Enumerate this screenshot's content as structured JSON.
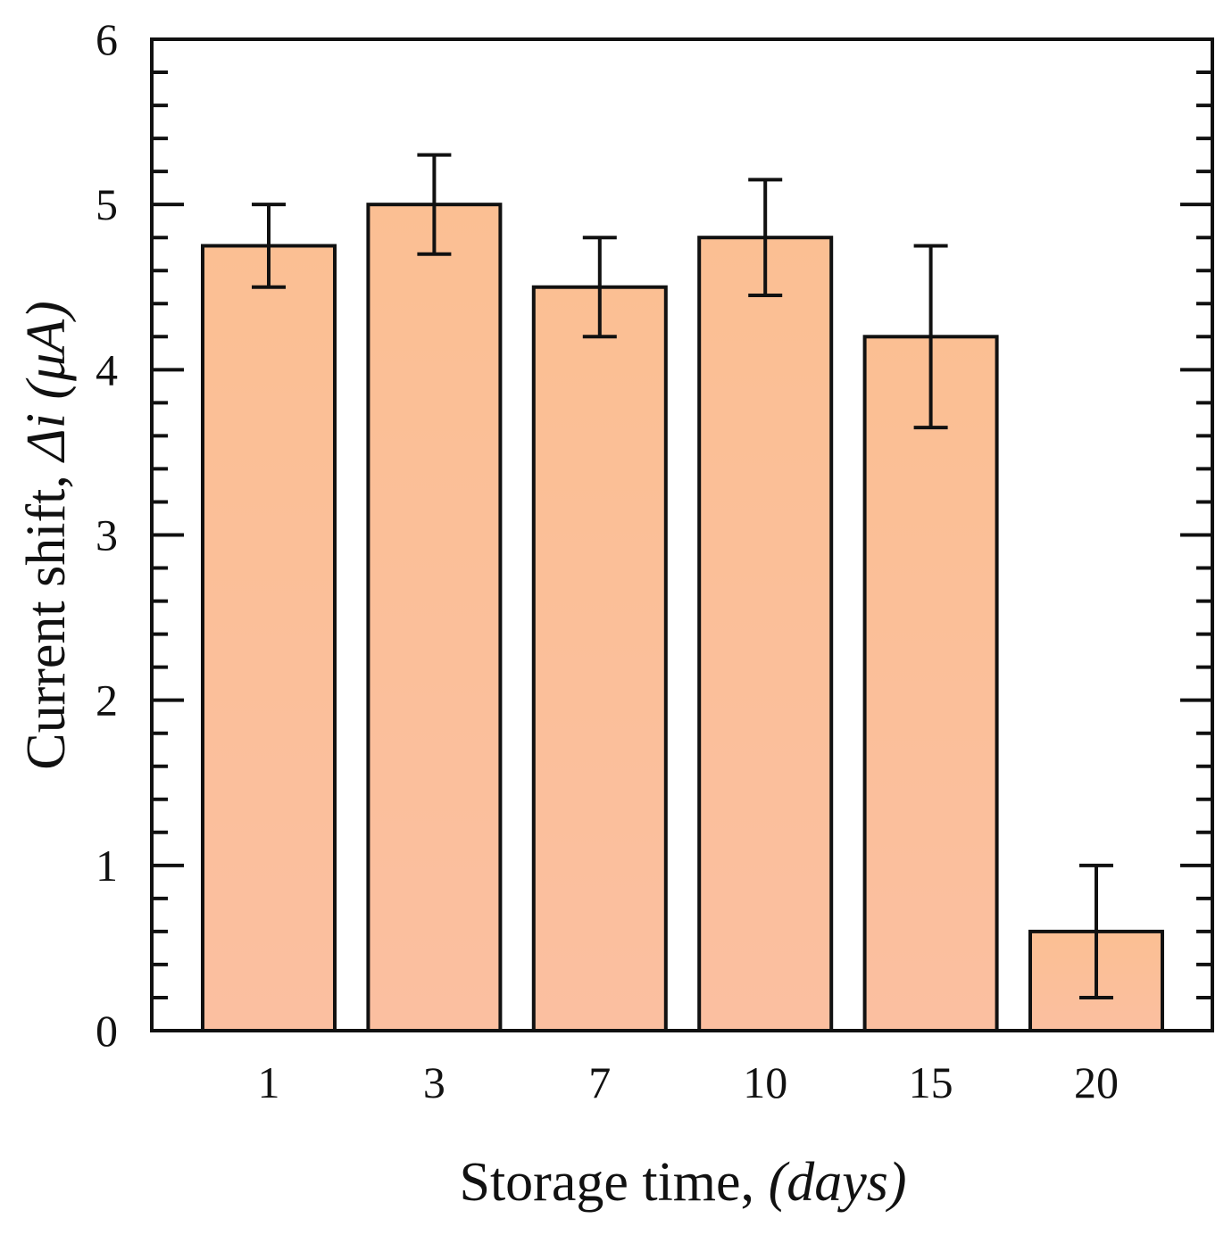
{
  "chart_data": {
    "type": "bar",
    "categories": [
      "1",
      "3",
      "7",
      "10",
      "15",
      "20"
    ],
    "values": [
      4.75,
      5.0,
      4.5,
      4.8,
      4.2,
      0.6
    ],
    "errors": [
      0.25,
      0.3,
      0.3,
      0.35,
      0.55,
      0.4
    ],
    "xlabel": {
      "prefix": "Storage time, ",
      "unit": "(days)"
    },
    "ylabel": {
      "prefix": "Current shift, ",
      "symbol": "Δi",
      "unit": "(μA)"
    },
    "ylim": [
      0,
      6
    ],
    "yticks": [
      "0",
      "1",
      "2",
      "3",
      "4",
      "5",
      "6"
    ],
    "grid": false,
    "colors": {
      "bar_fill_top": "#fbbf93",
      "bar_fill_bottom": "#fbbfa0",
      "bar_stroke": "#111111",
      "axis": "#111111"
    }
  }
}
